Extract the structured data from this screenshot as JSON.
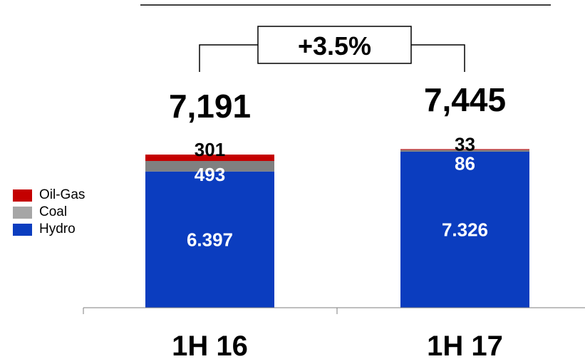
{
  "chart_data": {
    "type": "bar",
    "stacked": true,
    "categories": [
      "1H 16",
      "1H 17"
    ],
    "series": [
      {
        "name": "Hydro",
        "color": "#0b3dbf",
        "values": [
          6397,
          7326
        ],
        "value_labels": [
          "6.397",
          "7.326"
        ]
      },
      {
        "name": "Coal",
        "color": "#808080",
        "values": [
          493,
          86
        ],
        "value_labels": [
          "493",
          "86"
        ]
      },
      {
        "name": "Oil-Gas",
        "color": "#c40000",
        "values": [
          301,
          33
        ],
        "value_labels": [
          "301",
          "33"
        ]
      }
    ],
    "totals": [
      7191,
      7445
    ],
    "total_labels": [
      "7,191",
      "7,445"
    ],
    "change_label": "+3.5%",
    "legend": {
      "position": "left",
      "items": [
        {
          "name": "Oil-Gas",
          "color": "#c40000"
        },
        {
          "name": "Coal",
          "color": "#a6a6a6"
        },
        {
          "name": "Hydro",
          "color": "#0b3dbf"
        }
      ]
    },
    "ylim": [
      0,
      7500
    ],
    "grid": false
  }
}
